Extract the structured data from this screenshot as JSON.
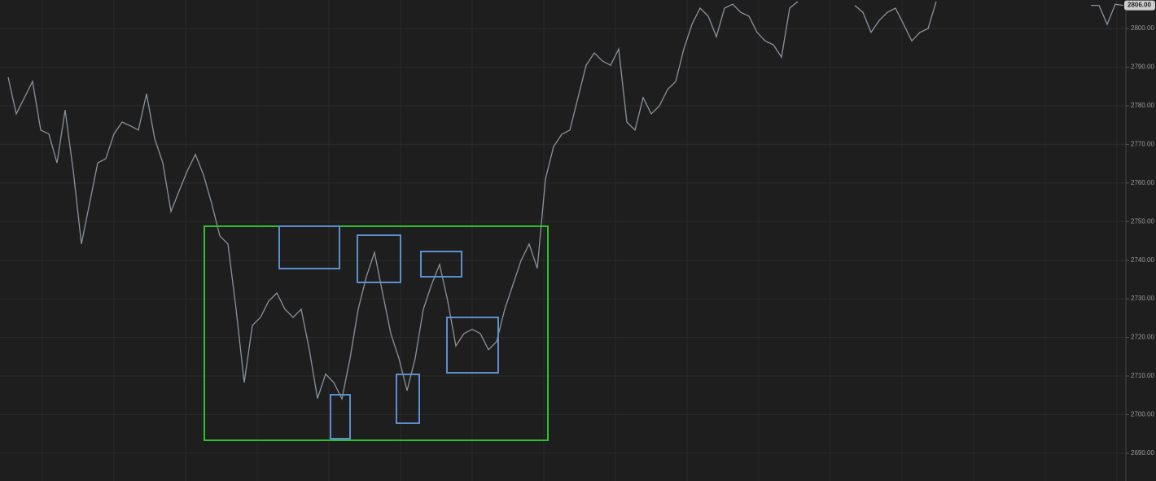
{
  "chart_data": {
    "type": "line",
    "series": [
      {
        "color": "#8b929b",
        "values": [
          2787.4,
          2777.9,
          2782.1,
          2786.3,
          2773.7,
          2772.7,
          2765.2,
          2778.9,
          2763.1,
          2744.2,
          2754.7,
          2765.2,
          2766.3,
          2772.7,
          2775.8,
          2774.8,
          2773.7,
          2783.1,
          2771.5,
          2765.2,
          2752.6,
          2757.9,
          2763.1,
          2767.4,
          2762.1,
          2754.7,
          2746.3,
          2744.2,
          2727.3,
          2708.3,
          2723.1,
          2725.2,
          2729.4,
          2731.5,
          2727.3,
          2725.2,
          2727.3,
          2716.8,
          2704.2,
          2710.5,
          2708.3,
          2704.1,
          2714.6,
          2727.3,
          2735.7,
          2742.0,
          2731.5,
          2721.0,
          2714.6,
          2706.2,
          2714.6,
          2727.3,
          2733.6,
          2738.9,
          2729.4,
          2717.8,
          2721.0,
          2722.1,
          2721.0,
          2716.8,
          2718.9,
          2727.3,
          2733.6,
          2739.9,
          2744.2,
          2737.9,
          2761.0,
          2769.4,
          2772.6,
          2773.7,
          2782.1,
          2790.5,
          2793.7,
          2791.6,
          2790.5,
          2794.7,
          2775.8,
          2773.7,
          2782.1,
          2777.9,
          2780.0,
          2784.2,
          2786.3,
          2794.7,
          2801.1,
          2805.3,
          2803.2,
          2797.9,
          2805.3,
          2806.3,
          2804.2,
          2803.2,
          2799.0,
          2796.8,
          2795.8,
          2792.6,
          2805.3,
          2807,
          null,
          null,
          null,
          null,
          null,
          null,
          2806,
          2804.2,
          2799.0,
          2802.1,
          2804.2,
          2805.3,
          2801.1,
          2796.8,
          2799.0,
          2800.0,
          2807,
          null,
          null,
          null,
          null,
          null,
          null,
          null,
          null,
          null,
          null,
          null,
          null,
          null,
          null,
          null,
          null,
          null,
          null,
          2806,
          2806,
          2801.1,
          2806.3,
          2806
        ]
      }
    ],
    "ylim": [
      2682.8,
      2807.4
    ],
    "yticks": [
      {
        "value": 2690,
        "label": "2690.00"
      },
      {
        "value": 2700,
        "label": "2700.00"
      },
      {
        "value": 2710,
        "label": "2710.00"
      },
      {
        "value": 2720,
        "label": "2720.00"
      },
      {
        "value": 2730,
        "label": "2730.00"
      },
      {
        "value": 2740,
        "label": "2740.00"
      },
      {
        "value": 2750,
        "label": "2750.00"
      },
      {
        "value": 2760,
        "label": "2760.00"
      },
      {
        "value": 2770,
        "label": "2770.00"
      },
      {
        "value": 2780,
        "label": "2780.00"
      },
      {
        "value": 2790,
        "label": "2790.00"
      },
      {
        "value": 2800,
        "label": "2800.00"
      }
    ],
    "last_price": {
      "value": 2806,
      "label": "2806.00"
    },
    "grid": true
  }
}
